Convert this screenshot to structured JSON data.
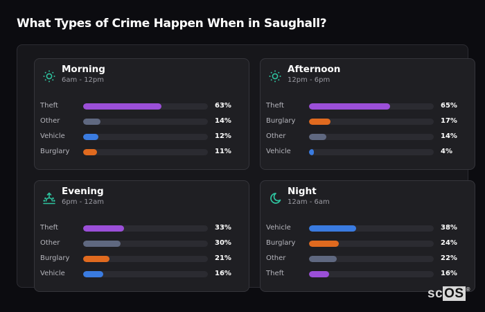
{
  "title": "What Types of Crime Happen When in Saughall?",
  "colors": {
    "accent_icon": "#2ec4a0",
    "Theft": "#9b4fd8",
    "Other": "#5f6880",
    "Vehicle": "#3a7be0",
    "Burglary": "#e06a1f"
  },
  "cards": [
    {
      "period": "Morning",
      "hours": "6am - 12pm",
      "icon": "sun-icon",
      "rows": [
        {
          "label": "Theft",
          "pct": "63%",
          "value": 63,
          "color": "#9b4fd8"
        },
        {
          "label": "Other",
          "pct": "14%",
          "value": 14,
          "color": "#5f6880"
        },
        {
          "label": "Vehicle",
          "pct": "12%",
          "value": 12,
          "color": "#3a7be0"
        },
        {
          "label": "Burglary",
          "pct": "11%",
          "value": 11,
          "color": "#e06a1f"
        }
      ]
    },
    {
      "period": "Afternoon",
      "hours": "12pm - 6pm",
      "icon": "sun-icon",
      "rows": [
        {
          "label": "Theft",
          "pct": "65%",
          "value": 65,
          "color": "#9b4fd8"
        },
        {
          "label": "Burglary",
          "pct": "17%",
          "value": 17,
          "color": "#e06a1f"
        },
        {
          "label": "Other",
          "pct": "14%",
          "value": 14,
          "color": "#5f6880"
        },
        {
          "label": "Vehicle",
          "pct": "4%",
          "value": 4,
          "color": "#3a7be0"
        }
      ]
    },
    {
      "period": "Evening",
      "hours": "6pm - 12am",
      "icon": "sunset-icon",
      "rows": [
        {
          "label": "Theft",
          "pct": "33%",
          "value": 33,
          "color": "#9b4fd8"
        },
        {
          "label": "Other",
          "pct": "30%",
          "value": 30,
          "color": "#5f6880"
        },
        {
          "label": "Burglary",
          "pct": "21%",
          "value": 21,
          "color": "#e06a1f"
        },
        {
          "label": "Vehicle",
          "pct": "16%",
          "value": 16,
          "color": "#3a7be0"
        }
      ]
    },
    {
      "period": "Night",
      "hours": "12am - 6am",
      "icon": "moon-icon",
      "rows": [
        {
          "label": "Vehicle",
          "pct": "38%",
          "value": 38,
          "color": "#3a7be0"
        },
        {
          "label": "Burglary",
          "pct": "24%",
          "value": 24,
          "color": "#e06a1f"
        },
        {
          "label": "Other",
          "pct": "22%",
          "value": 22,
          "color": "#5f6880"
        },
        {
          "label": "Theft",
          "pct": "16%",
          "value": 16,
          "color": "#9b4fd8"
        }
      ]
    }
  ],
  "logo": {
    "sc": "sc",
    "os": "OS",
    "reg": "®"
  }
}
